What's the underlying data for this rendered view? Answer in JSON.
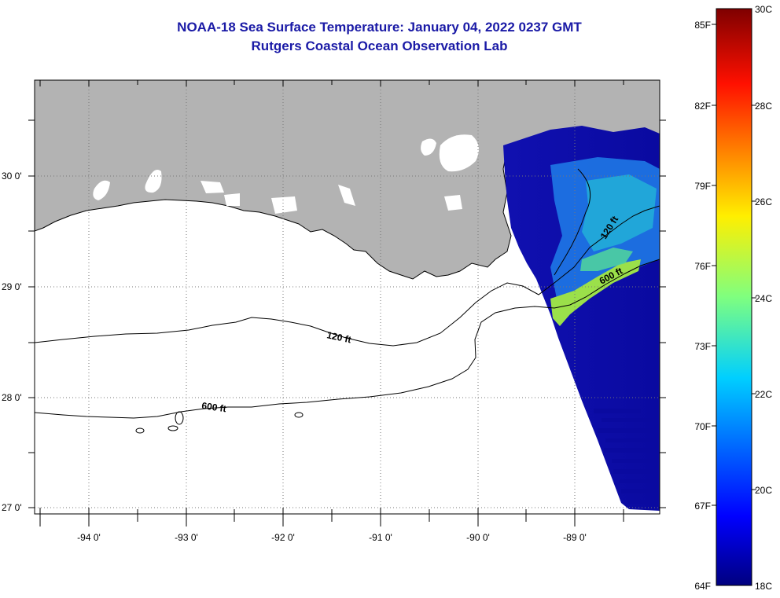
{
  "title": "NOAA-18 Sea Surface Temperature:  January 04, 2022 0237 GMT",
  "subtitle": "Rutgers Coastal Ocean Observation Lab",
  "map": {
    "lat_labels": [
      "30 0'",
      "29 0'",
      "28 0'",
      "27 0'"
    ],
    "lon_labels": [
      "-94 0'",
      "-93 0'",
      "-92 0'",
      "-91 0'",
      "-90 0'",
      "-89 0'"
    ],
    "contours": [
      {
        "label": "120 ft"
      },
      {
        "label": "600 ft"
      },
      {
        "label": "120 ft"
      },
      {
        "label": "600 ft"
      }
    ]
  },
  "colorbar": {
    "celsius_labels": [
      "30C",
      "28C",
      "26C",
      "24C",
      "22C",
      "20C",
      "18C"
    ],
    "fahrenheit_labels": [
      "85F",
      "82F",
      "79F",
      "76F",
      "73F",
      "70F",
      "67F",
      "64F"
    ]
  },
  "colors": {
    "title": "#1a1aa6",
    "land": "#b3b3b3",
    "ocean": "#ffffff",
    "sst_cold": "#0a0aa0",
    "sst_mid": "#1e6fe0",
    "sst_warm": "#9be04a"
  }
}
